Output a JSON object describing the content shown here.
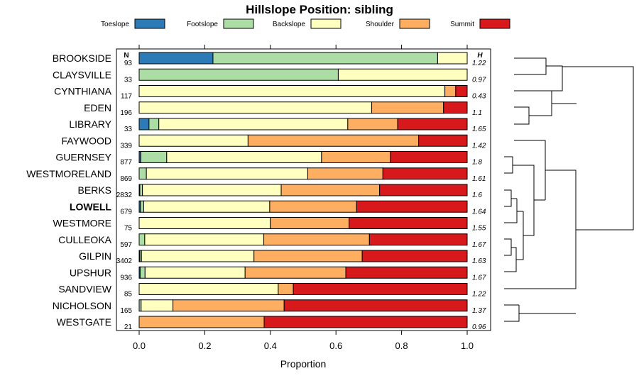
{
  "chart_data": {
    "type": "bar",
    "orientation": "horizontal-stacked",
    "title": "Hillslope Position: sibling",
    "xlabel": "Proportion",
    "xlim": [
      0,
      1
    ],
    "xticks": [
      "0.0",
      "0.2",
      "0.4",
      "0.6",
      "0.8",
      "1.0"
    ],
    "n_header": "N",
    "h_header": "H",
    "legend": [
      {
        "name": "Toeslope",
        "color": "#2c7bb6"
      },
      {
        "name": "Footslope",
        "color": "#abdda4"
      },
      {
        "name": "Backslope",
        "color": "#ffffbf"
      },
      {
        "name": "Shoulder",
        "color": "#fdae61"
      },
      {
        "name": "Summit",
        "color": "#d7191c"
      }
    ],
    "rows": [
      {
        "name": "BROOKSIDE",
        "n": "93",
        "h": "1.22",
        "values": [
          0.225,
          0.685,
          0.09,
          0,
          0
        ]
      },
      {
        "name": "CLAYSVILLE",
        "n": "33",
        "h": "0.97",
        "values": [
          0,
          0.607,
          0.393,
          0,
          0
        ]
      },
      {
        "name": "CYNTHIANA",
        "n": "117",
        "h": "0.43",
        "values": [
          0,
          0,
          0.932,
          0.033,
          0.035
        ]
      },
      {
        "name": "EDEN",
        "n": "196",
        "h": "1.1",
        "values": [
          0,
          0,
          0.709,
          0.219,
          0.072
        ]
      },
      {
        "name": "LIBRARY",
        "n": "33",
        "h": "1.65",
        "values": [
          0.03,
          0.03,
          0.576,
          0.152,
          0.212
        ]
      },
      {
        "name": "FAYWOOD",
        "n": "339",
        "h": "1.42",
        "values": [
          0,
          0,
          0.332,
          0.52,
          0.148
        ]
      },
      {
        "name": "GUERNSEY",
        "n": "877",
        "h": "1.8",
        "values": [
          0.005,
          0.079,
          0.472,
          0.21,
          0.234
        ]
      },
      {
        "name": "WESTMORELAND",
        "n": "869",
        "h": "1.61",
        "values": [
          0,
          0.022,
          0.492,
          0.229,
          0.257
        ]
      },
      {
        "name": "BERKS",
        "n": "2832",
        "h": "1.6",
        "values": [
          0.002,
          0.008,
          0.423,
          0.3,
          0.267
        ]
      },
      {
        "name": "LOWELL",
        "n": "679",
        "h": "1.64",
        "values": [
          0.004,
          0.01,
          0.384,
          0.265,
          0.337
        ],
        "bold": true
      },
      {
        "name": "WESTMORE",
        "n": "75",
        "h": "1.55",
        "values": [
          0,
          0,
          0.4,
          0.24,
          0.36
        ]
      },
      {
        "name": "CULLEOKA",
        "n": "597",
        "h": "1.67",
        "values": [
          0,
          0.017,
          0.363,
          0.322,
          0.298
        ]
      },
      {
        "name": "GILPIN",
        "n": "3402",
        "h": "1.63",
        "values": [
          0.002,
          0.005,
          0.343,
          0.33,
          0.32
        ]
      },
      {
        "name": "UPSHUR",
        "n": "936",
        "h": "1.67",
        "values": [
          0.003,
          0.015,
          0.305,
          0.307,
          0.37
        ]
      },
      {
        "name": "SANDVIEW",
        "n": "85",
        "h": "1.22",
        "values": [
          0,
          0,
          0.424,
          0.046,
          0.53
        ]
      },
      {
        "name": "NICHOLSON",
        "n": "165",
        "h": "1.37",
        "values": [
          0,
          0.006,
          0.097,
          0.339,
          0.558
        ]
      },
      {
        "name": "WESTGATE",
        "n": "21",
        "h": "0.96",
        "values": [
          0,
          0,
          0,
          0.381,
          0.619
        ]
      }
    ]
  }
}
